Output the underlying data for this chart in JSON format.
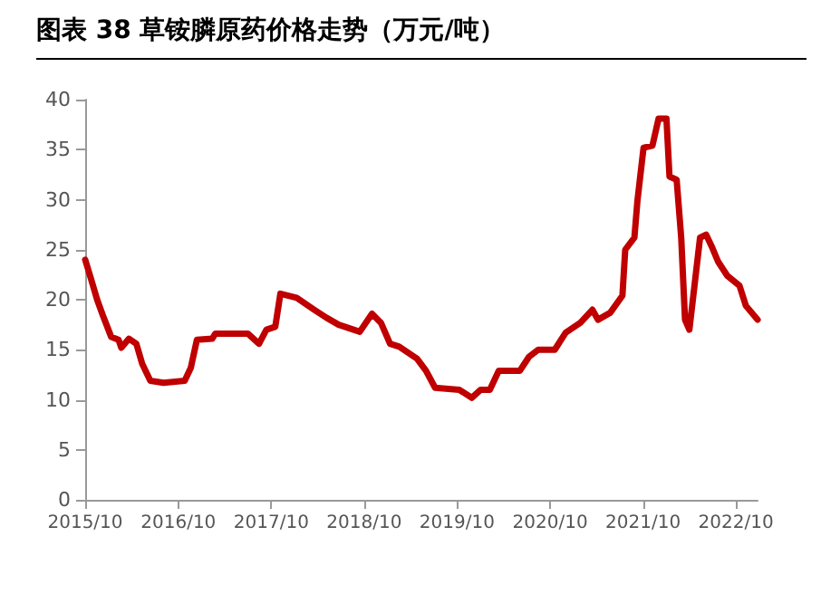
{
  "chart_data": {
    "type": "line",
    "title": "图表 38 草铵膦原药价格走势（万元/吨）",
    "x": [
      "2015-10-01",
      "2015-10-25",
      "2015-11-17",
      "2015-12-10",
      "2016-01-11",
      "2016-02-09",
      "2016-02-20",
      "2016-03-21",
      "2016-04-19",
      "2016-05-12",
      "2016-06-13",
      "2016-08-04",
      "2016-10-26",
      "2016-11-19",
      "2016-12-13",
      "2017-02-11",
      "2017-02-23",
      "2017-07-02",
      "2017-08-14",
      "2017-09-12",
      "2017-10-17",
      "2017-11-06",
      "2018-01-09",
      "2018-03-19",
      "2018-05-06",
      "2018-06-23",
      "2018-09-14",
      "2018-11-01",
      "2018-12-06",
      "2019-01-11",
      "2019-02-16",
      "2019-04-27",
      "2019-06-01",
      "2019-07-07",
      "2019-10-10",
      "2019-11-28",
      "2020-01-02",
      "2020-02-07",
      "2020-03-13",
      "2020-06-04",
      "2020-07-10",
      "2020-08-15",
      "2020-10-19",
      "2020-12-01",
      "2021-01-28",
      "2021-03-16",
      "2021-04-07",
      "2021-05-25",
      "2021-07-12",
      "2021-07-23",
      "2021-08-28",
      "2021-09-09",
      "2021-10-03",
      "2021-11-07",
      "2021-12-01",
      "2022-01-01",
      "2022-01-13",
      "2022-02-10",
      "2022-02-28",
      "2022-03-15",
      "2022-04-01",
      "2022-05-13",
      "2022-06-06",
      "2022-06-30",
      "2022-07-23",
      "2022-08-28",
      "2022-10-15",
      "2022-11-09",
      "2022-12-25"
    ],
    "series": [
      {
        "color": "#c00000",
        "values": [
          24,
          22,
          20,
          18.4,
          16.3,
          16,
          15.2,
          16.1,
          15.6,
          13.6,
          11.9,
          11.7,
          11.9,
          13.2,
          16,
          16.1,
          16.6,
          16.6,
          15.6,
          17,
          17.3,
          20.6,
          20.2,
          19,
          18.2,
          17.5,
          16.8,
          18.6,
          17.7,
          15.6,
          15.3,
          14.1,
          12.9,
          11.2,
          11,
          10.2,
          11,
          11,
          12.9,
          12.9,
          14.3,
          15,
          15,
          16.7,
          17.7,
          19,
          18,
          18.7,
          20.4,
          25,
          26.2,
          29.9,
          35.2,
          35.4,
          38.1,
          38.1,
          32.3,
          32,
          26.2,
          18,
          17,
          26.2,
          26.5,
          25.2,
          23.8,
          22.4,
          21.4,
          19.4,
          18
        ]
      }
    ],
    "xlim": [
      "2015-10-01",
      "2022-12-25"
    ],
    "xticks": [
      {
        "value": "2015-10",
        "label": "2015/10"
      },
      {
        "value": "2016-10",
        "label": "2016/10"
      },
      {
        "value": "2017-10",
        "label": "2017/10"
      },
      {
        "value": "2018-10",
        "label": "2018/10"
      },
      {
        "value": "2019-10",
        "label": "2019/10"
      },
      {
        "value": "2020-10",
        "label": "2020/10"
      },
      {
        "value": "2021-10",
        "label": "2021/10"
      },
      {
        "value": "2022-10",
        "label": "2022/10"
      }
    ],
    "ylim": [
      0,
      40
    ],
    "yticks": [
      0,
      5,
      10,
      15,
      20,
      25,
      30,
      35,
      40
    ],
    "grid": false,
    "marker": "none",
    "line_style": "solid"
  }
}
